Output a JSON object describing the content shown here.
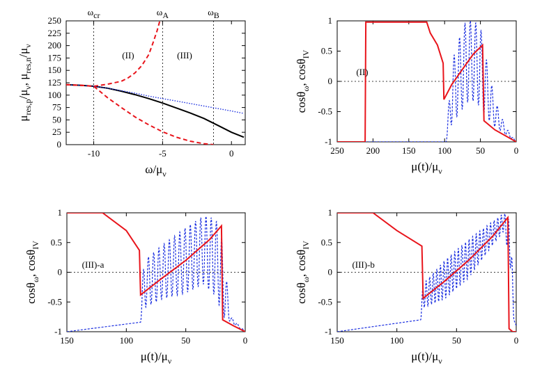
{
  "chart_data": [
    {
      "id": "p1",
      "type": "line",
      "xlabel": {
        "main": "ω/μ",
        "sub": "ν"
      },
      "ylabel": {
        "parts": [
          [
            "μ",
            ""
          ],
          [
            "res,p",
            "sub"
          ],
          [
            "/μ",
            ""
          ],
          [
            "ν",
            "sub"
          ],
          [
            ", μ",
            ""
          ],
          [
            "res,n",
            "sub"
          ],
          [
            "/μ",
            ""
          ],
          [
            "ν",
            "sub"
          ]
        ]
      },
      "xlim": [
        -12,
        1
      ],
      "ylim": [
        0,
        250
      ],
      "xticks": [
        -10,
        -5,
        0
      ],
      "yticks": [
        0,
        25,
        50,
        75,
        100,
        125,
        150,
        175,
        200,
        225,
        250
      ],
      "vlines": [
        {
          "x": -10,
          "label": "ω",
          "sub": "cr"
        },
        {
          "x": -5,
          "label": "ω",
          "sub": "A"
        },
        {
          "x": -1.3,
          "label": "ω",
          "sub": "B"
        }
      ],
      "annotations": [
        {
          "text": "(II)",
          "x": -7.5,
          "y": 180
        },
        {
          "text": "(III)",
          "x": -3.4,
          "y": 180
        }
      ],
      "series": [
        {
          "style": "solid-black",
          "points": [
            [
              -12,
              121
            ],
            [
              -11,
              120
            ],
            [
              -10,
              118
            ],
            [
              -9,
              114
            ],
            [
              -8,
              108
            ],
            [
              -7,
              101
            ],
            [
              -6,
              93
            ],
            [
              -5,
              84
            ],
            [
              -4,
              74
            ],
            [
              -3,
              64
            ],
            [
              -2,
              53
            ],
            [
              -1,
              39
            ],
            [
              0,
              25
            ],
            [
              0.9,
              15
            ]
          ]
        },
        {
          "style": "dotted-blue",
          "points": [
            [
              -12,
              121
            ],
            [
              -11,
              120
            ],
            [
              -10,
              118
            ],
            [
              -9,
              114
            ],
            [
              -8,
              109
            ],
            [
              -7,
              104
            ],
            [
              -6,
              98
            ],
            [
              -5,
              93
            ],
            [
              -4,
              88
            ],
            [
              -3,
              83
            ],
            [
              -2,
              78
            ],
            [
              -1,
              73
            ],
            [
              0,
              68
            ],
            [
              0.9,
              63
            ]
          ]
        },
        {
          "style": "dashed-red",
          "points": [
            [
              -12,
              121
            ],
            [
              -11,
              120
            ],
            [
              -10,
              118
            ],
            [
              -9,
              122
            ],
            [
              -8,
              128
            ],
            [
              -7.5,
              135
            ],
            [
              -7,
              145
            ],
            [
              -6.5,
              160
            ],
            [
              -6,
              182
            ],
            [
              -5.7,
              205
            ],
            [
              -5.4,
              230
            ],
            [
              -5.2,
              250
            ]
          ]
        },
        {
          "style": "dashed-red",
          "points": [
            [
              -12,
              121
            ],
            [
              -11,
              120
            ],
            [
              -10,
              118
            ],
            [
              -9,
              95
            ],
            [
              -8,
              75
            ],
            [
              -7,
              56
            ],
            [
              -6,
              40
            ],
            [
              -5,
              26
            ],
            [
              -4,
              15
            ],
            [
              -3,
              7
            ],
            [
              -2,
              2
            ],
            [
              -1.3,
              0
            ]
          ]
        }
      ]
    },
    {
      "id": "p2",
      "type": "line",
      "xlabel": {
        "main": "μ(t)/μ",
        "sub": "ν"
      },
      "ylabel": {
        "parts": [
          [
            "cosθ",
            ""
          ],
          [
            "ω",
            "sub"
          ],
          [
            ", cosθ",
            ""
          ],
          [
            "IV",
            "sub"
          ]
        ]
      },
      "xlim": [
        250,
        0
      ],
      "ylim": [
        -1,
        1
      ],
      "xticks": [
        250,
        200,
        150,
        100,
        50,
        0
      ],
      "yticks": [
        -1,
        -0.5,
        0,
        0.5,
        1
      ],
      "hline": 0,
      "annotations": [
        {
          "text": "(II)",
          "x": 215,
          "y": 0.15
        }
      ],
      "red": [
        [
          250,
          -1
        ],
        [
          211,
          -1
        ],
        [
          210,
          0.98
        ],
        [
          135,
          0.98
        ],
        [
          125,
          0.98
        ],
        [
          120,
          0.8
        ],
        [
          110,
          0.6
        ],
        [
          102,
          0.3
        ],
        [
          101,
          -0.3
        ],
        [
          90,
          -0.05
        ],
        [
          75,
          0.2
        ],
        [
          60,
          0.45
        ],
        [
          47,
          0.6
        ],
        [
          45,
          -0.65
        ],
        [
          30,
          -0.8
        ],
        [
          15,
          -0.9
        ],
        [
          0,
          -1
        ]
      ],
      "blue_osc": {
        "start": 98,
        "end": 0,
        "periods": 13,
        "base": [
          [
            250,
            -1
          ],
          [
            98,
            -1
          ],
          [
            90,
            -0.7
          ],
          [
            75,
            -0.45
          ],
          [
            65,
            -0.3
          ],
          [
            55,
            -0.35
          ],
          [
            45,
            -0.55
          ],
          [
            30,
            -0.75
          ],
          [
            15,
            -0.88
          ],
          [
            0,
            -1
          ]
        ],
        "top": [
          [
            250,
            -1
          ],
          [
            98,
            -1
          ],
          [
            90,
            0.3
          ],
          [
            80,
            0.7
          ],
          [
            70,
            1
          ],
          [
            60,
            1
          ],
          [
            50,
            0.9
          ],
          [
            45,
            0.55
          ],
          [
            30,
            -0.3
          ],
          [
            15,
            -0.75
          ],
          [
            0,
            -1
          ]
        ]
      }
    },
    {
      "id": "p3",
      "type": "line",
      "xlabel": {
        "main": "μ(t)/μ",
        "sub": "ν"
      },
      "ylabel": {
        "parts": [
          [
            "cosθ",
            ""
          ],
          [
            "ω",
            "sub"
          ],
          [
            ", cosθ",
            ""
          ],
          [
            "IV",
            "sub"
          ]
        ]
      },
      "xlim": [
        150,
        0
      ],
      "ylim": [
        -1,
        1
      ],
      "xticks": [
        150,
        100,
        50,
        0
      ],
      "yticks": [
        -1,
        -0.5,
        0,
        0.5,
        1
      ],
      "hline": 0,
      "annotations": [
        {
          "text": "(III)-a",
          "x": 128,
          "y": 0.12
        }
      ],
      "red": [
        [
          150,
          1
        ],
        [
          120,
          1
        ],
        [
          100,
          0.7
        ],
        [
          89,
          0.37
        ],
        [
          88,
          -0.38
        ],
        [
          70,
          -0.1
        ],
        [
          50,
          0.2
        ],
        [
          30,
          0.55
        ],
        [
          20,
          0.78
        ],
        [
          19,
          -0.8
        ],
        [
          10,
          -0.9
        ],
        [
          0,
          -1
        ]
      ],
      "blue_osc": {
        "start": 88,
        "end": 0,
        "periods": 20,
        "base": [
          [
            150,
            -1
          ],
          [
            90,
            -1
          ],
          [
            85,
            -0.6
          ],
          [
            70,
            -0.45
          ],
          [
            50,
            -0.35
          ],
          [
            35,
            -0.2
          ],
          [
            25,
            -0.4
          ],
          [
            18,
            -0.75
          ],
          [
            8,
            -0.9
          ],
          [
            0,
            -1
          ]
        ],
        "top": [
          [
            150,
            -1
          ],
          [
            90,
            -1
          ],
          [
            85,
            0.2
          ],
          [
            70,
            0.45
          ],
          [
            50,
            0.75
          ],
          [
            35,
            0.95
          ],
          [
            25,
            0.9
          ],
          [
            20,
            0.6
          ],
          [
            12,
            -0.75
          ],
          [
            0,
            -1
          ]
        ]
      }
    },
    {
      "id": "p4",
      "type": "line",
      "xlabel": {
        "main": "μ(t)/μ",
        "sub": "ν"
      },
      "ylabel": {
        "parts": [
          [
            "cosθ",
            ""
          ],
          [
            "ω",
            "sub"
          ],
          [
            ", cosθ",
            ""
          ],
          [
            "IV",
            "sub"
          ]
        ]
      },
      "xlim": [
        150,
        0
      ],
      "ylim": [
        -1,
        1
      ],
      "xticks": [
        150,
        100,
        50,
        0
      ],
      "yticks": [
        -1,
        -0.5,
        0,
        0.5,
        1
      ],
      "hline": 0,
      "annotations": [
        {
          "text": "(III)-b",
          "x": 128,
          "y": 0.12
        }
      ],
      "red": [
        [
          150,
          1
        ],
        [
          120,
          1
        ],
        [
          100,
          0.7
        ],
        [
          79,
          0.44
        ],
        [
          78,
          -0.44
        ],
        [
          60,
          -0.15
        ],
        [
          40,
          0.2
        ],
        [
          20,
          0.6
        ],
        [
          7,
          0.92
        ],
        [
          6,
          -0.95
        ],
        [
          3,
          -1
        ],
        [
          0,
          -1
        ]
      ],
      "blue_osc": {
        "start": 80,
        "end": 2,
        "periods": 26,
        "base": [
          [
            150,
            -1
          ],
          [
            82,
            -1
          ],
          [
            78,
            -0.6
          ],
          [
            60,
            -0.45
          ],
          [
            40,
            -0.1
          ],
          [
            20,
            0.45
          ],
          [
            10,
            0.7
          ],
          [
            5,
            0.1
          ],
          [
            2,
            -0.8
          ],
          [
            0,
            -0.9
          ]
        ],
        "top": [
          [
            150,
            -1
          ],
          [
            82,
            -1
          ],
          [
            78,
            -0.2
          ],
          [
            60,
            0.2
          ],
          [
            40,
            0.55
          ],
          [
            20,
            0.85
          ],
          [
            10,
            1
          ],
          [
            5,
            0.85
          ],
          [
            2,
            -0.5
          ],
          [
            0,
            -0.9
          ]
        ]
      }
    }
  ]
}
